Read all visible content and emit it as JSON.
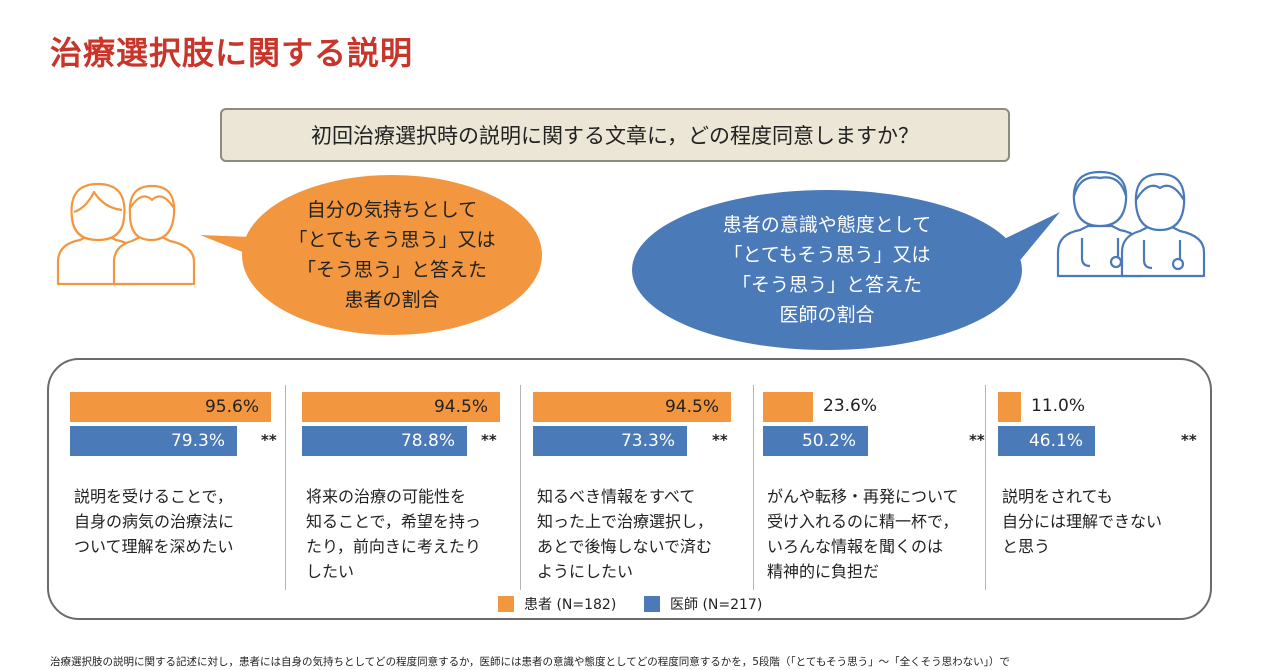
{
  "title": "治療選択肢に関する説明",
  "question": "初回治療選択時の説明に関する文章に，どの程度同意しますか？",
  "bubbles": {
    "patient": "自分の気持ちとして\n「とてもそう思う」又は\n「そう思う」と答えた\n患者の割合",
    "doctor": "患者の意識や態度として\n「とてもそう思う」又は\n「そう思う」と答えた\n医師の割合"
  },
  "icons": {
    "patient_people": "two-patients-icon",
    "doctor_people": "two-doctors-icon"
  },
  "colors": {
    "title": "#c8352a",
    "patient": "#f2963f",
    "doctor": "#4a7ab8",
    "question_bg": "#ebe6d6"
  },
  "chart_data": {
    "type": "bar",
    "orientation": "horizontal",
    "unit": "%",
    "xlim": [
      0,
      100
    ],
    "series": [
      {
        "name": "患者 (N=182)",
        "values": [
          95.6,
          94.5,
          94.5,
          23.6,
          11.0
        ],
        "labels": [
          "95.6%",
          "94.5%",
          "94.5%",
          "23.6%",
          "11.0%"
        ]
      },
      {
        "name": "医師 (N=217)",
        "values": [
          79.3,
          78.8,
          73.3,
          50.2,
          46.1
        ],
        "labels": [
          "79.3%",
          "78.8%",
          "73.3%",
          "50.2%",
          "46.1%"
        ]
      }
    ],
    "significance": [
      "**",
      "**",
      "**",
      "**",
      "**"
    ],
    "categories": [
      "説明を受けることで，\n自身の病気の治療法に\nついて理解を深めたい",
      "将来の治療の可能性を\n知ることで，希望を持っ\nたり，前向きに考えたり\nしたい",
      "知るべき情報をすべて\n知った上で治療選択し，\nあとで後悔しないで済む\nようにしたい",
      "がんや転移・再発について\n受け入れるのに精一杯で，\nいろんな情報を聞くのは\n精神的に負担だ",
      "説明をされても\n自分には理解できない\nと思う"
    ],
    "legend_position": "bottom"
  },
  "legend": {
    "patient": "患者 (N=182)",
    "doctor": "医師 (N=217)"
  },
  "footnote": "治療選択肢の説明に関する記述に対し，患者には自身の気持ちとしてどの程度同意するか，医師には患者の意識や態度としてどの程度同意するかを，5段階（「とてもそう思う」〜「全くそう思わない」）で"
}
